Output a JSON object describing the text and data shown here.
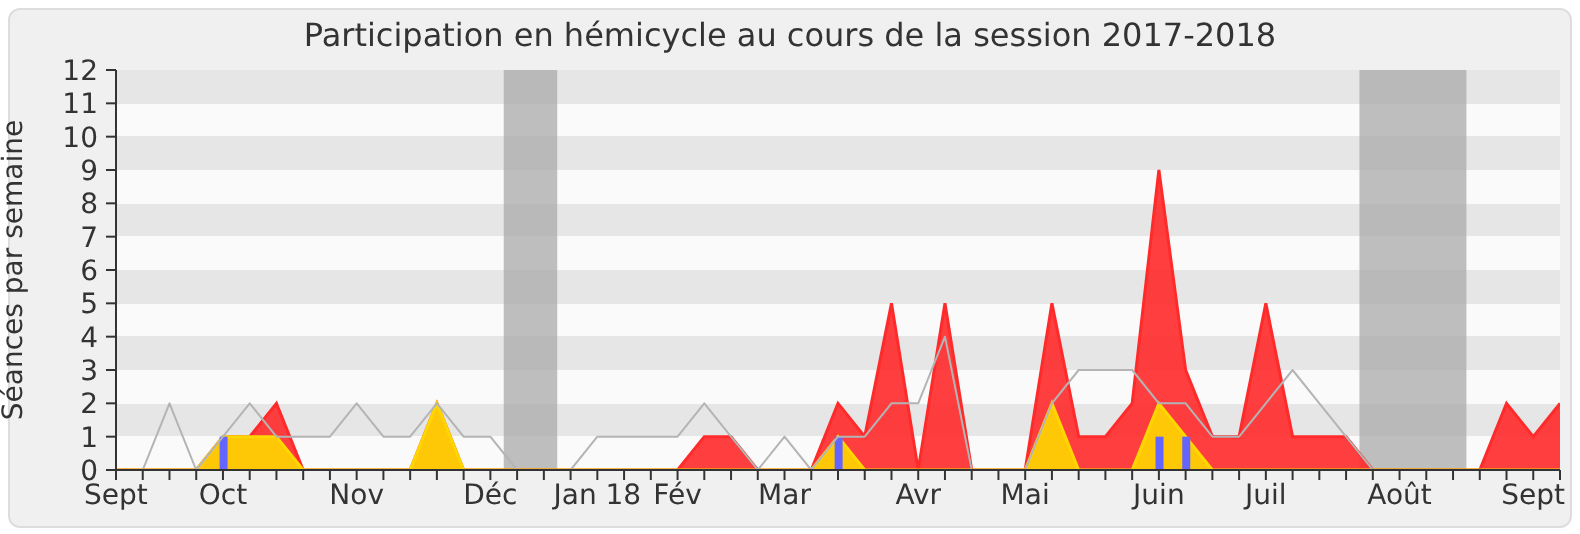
{
  "chart_data": {
    "type": "area",
    "title": "Participation en hémicycle au cours de la session 2017-2018",
    "ylabel": "Séances par semaine",
    "categories": [
      "Sept",
      null,
      null,
      null,
      "Oct",
      null,
      null,
      null,
      null,
      "Nov",
      null,
      null,
      null,
      null,
      "Déc",
      null,
      null,
      null,
      "Jan 18",
      null,
      null,
      "Fév",
      null,
      null,
      null,
      "Mar",
      null,
      null,
      null,
      null,
      "Avr",
      null,
      null,
      null,
      "Mai",
      null,
      null,
      null,
      null,
      "Juin",
      null,
      null,
      null,
      "Juil",
      null,
      null,
      null,
      null,
      "Août",
      null,
      null,
      null,
      null,
      "Sept",
      null
    ],
    "series": [
      {
        "type": "line",
        "color": "#b4b4b4",
        "values": [
          0,
          0,
          2,
          0,
          1,
          2,
          1,
          1,
          1,
          2,
          1,
          1,
          2,
          1,
          1,
          0,
          0,
          0,
          1,
          1,
          1,
          1,
          2,
          1,
          0,
          1,
          0,
          1,
          1,
          2,
          2,
          4,
          0,
          0,
          0,
          2,
          3,
          3,
          3,
          2,
          2,
          1,
          1,
          2,
          3,
          2,
          1,
          0,
          0,
          0,
          0,
          0,
          0,
          0,
          0
        ]
      },
      {
        "color": "#ff2a2a",
        "values": [
          0,
          0,
          0,
          0,
          1,
          1,
          2,
          0,
          0,
          0,
          0,
          0,
          2,
          0,
          0,
          0,
          0,
          0,
          0,
          0,
          0,
          0,
          1,
          1,
          0,
          0,
          0,
          2,
          1,
          5,
          0,
          5,
          0,
          0,
          0,
          5,
          1,
          1,
          2,
          9,
          3,
          1,
          1,
          5,
          1,
          1,
          1,
          0,
          0,
          0,
          0,
          0,
          2,
          1,
          2
        ]
      },
      {
        "color": "#ffd700",
        "values": [
          0,
          0,
          0,
          0,
          1,
          1,
          1,
          0,
          0,
          0,
          0,
          0,
          2,
          0,
          0,
          0,
          0,
          0,
          0,
          0,
          0,
          0,
          0,
          0,
          0,
          0,
          0,
          1,
          0,
          0,
          0,
          0,
          0,
          0,
          0,
          2,
          0,
          0,
          0,
          2,
          1,
          0,
          0,
          0,
          0,
          0,
          0,
          0,
          0,
          0,
          0,
          0,
          0,
          0,
          0
        ]
      },
      {
        "type": "bar",
        "color": "#6464ff",
        "values": [
          0,
          0,
          0,
          0,
          1,
          0,
          0,
          0,
          0,
          0,
          0,
          0,
          0,
          0,
          0,
          0,
          0,
          0,
          0,
          0,
          0,
          0,
          0,
          0,
          0,
          0,
          0,
          1,
          0,
          0,
          0,
          0,
          0,
          0,
          0,
          0,
          0,
          0,
          0,
          1,
          1,
          0,
          0,
          0,
          0,
          0,
          0,
          0,
          0,
          0,
          0,
          0,
          0,
          0,
          0
        ]
      }
    ],
    "ylim": [
      0,
      12
    ],
    "yticks": [
      0,
      1,
      2,
      3,
      4,
      5,
      6,
      7,
      8,
      9,
      10,
      11,
      12
    ]
  }
}
